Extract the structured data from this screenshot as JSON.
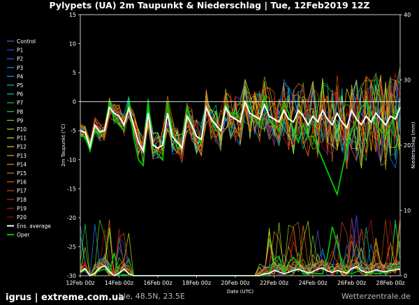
{
  "chart_data": {
    "type": "line",
    "title": "Pylypets  (UA)  2m Taupunkt & Niederschlag | Tue, 12Feb2019 12Z",
    "xlabel": "Date (UTC)",
    "ylabel_left": "2m Taupunkt (°C)",
    "ylabel_right": "Niederschlag (mm)",
    "ylim_left": [
      -30,
      15
    ],
    "ylim_right": [
      0,
      40
    ],
    "xlim_hours": [
      0,
      396
    ],
    "x_ticks": [
      {
        "h": 0,
        "label": "12Feb 00z"
      },
      {
        "h": 48,
        "label": "14Feb 00z"
      },
      {
        "h": 96,
        "label": "16Feb 00z"
      },
      {
        "h": 144,
        "label": "18Feb 00z"
      },
      {
        "h": 192,
        "label": "20Feb 00z"
      },
      {
        "h": 240,
        "label": "22Feb 00z"
      },
      {
        "h": 288,
        "label": "24Feb 00z"
      },
      {
        "h": 336,
        "label": "26Feb 00z"
      },
      {
        "h": 384,
        "label": "28Feb 00z"
      }
    ],
    "y_ticks_left": [
      15,
      10,
      5,
      0,
      -5,
      -10,
      -15,
      -20,
      -25,
      -30
    ],
    "y_ticks_right": [
      0,
      10,
      20,
      30,
      40
    ],
    "legend_placement": "left-outside",
    "series": [
      {
        "name": "Control",
        "color": "#6a5acd"
      },
      {
        "name": "P1",
        "color": "#3a3aff"
      },
      {
        "name": "P2",
        "color": "#2a62ff"
      },
      {
        "name": "P3",
        "color": "#1e8cff"
      },
      {
        "name": "P4",
        "color": "#00aadd"
      },
      {
        "name": "P5",
        "color": "#00c8c8"
      },
      {
        "name": "P6",
        "color": "#00d49a"
      },
      {
        "name": "P7",
        "color": "#00dd60"
      },
      {
        "name": "P8",
        "color": "#22e030"
      },
      {
        "name": "P9",
        "color": "#66e020"
      },
      {
        "name": "P10",
        "color": "#a6e020"
      },
      {
        "name": "P11",
        "color": "#d6e000"
      },
      {
        "name": "P12",
        "color": "#f0d000"
      },
      {
        "name": "P13",
        "color": "#f0a800"
      },
      {
        "name": "P14",
        "color": "#e89020"
      },
      {
        "name": "P15",
        "color": "#e07818"
      },
      {
        "name": "P16",
        "color": "#d86010"
      },
      {
        "name": "P17",
        "color": "#d04a10"
      },
      {
        "name": "P18",
        "color": "#c83010"
      },
      {
        "name": "P19",
        "color": "#c01818"
      },
      {
        "name": "P20",
        "color": "#b00000"
      },
      {
        "name": "Ens. average",
        "color": "#ffffff"
      },
      {
        "name": "Oper",
        "color": "#00cc00"
      }
    ],
    "dew_point": {
      "ens_average": {
        "x": [
          0,
          6,
          12,
          18,
          24,
          30,
          36,
          42,
          48,
          54,
          60,
          66,
          72,
          78,
          84,
          90,
          96,
          102,
          108,
          114,
          120,
          126,
          132,
          138,
          144,
          150,
          156,
          162,
          168,
          174,
          180,
          186,
          192,
          198,
          204,
          210,
          216,
          222,
          228,
          234,
          240,
          246,
          252,
          258,
          264,
          270,
          276,
          282,
          288,
          294,
          300,
          306,
          312,
          318,
          324,
          330,
          336,
          342,
          348,
          354,
          360,
          366,
          372,
          378,
          384,
          390,
          396
        ],
        "y": [
          -5,
          -5.3,
          -7.8,
          -4,
          -5.2,
          -5,
          -1,
          -2,
          -2.5,
          -4,
          -1.2,
          -4,
          -7,
          -8.5,
          -2,
          -7.5,
          -8,
          -7.5,
          -2,
          -6,
          -7,
          -8,
          -2.5,
          -4,
          -6,
          -6.5,
          -1,
          -3,
          -4,
          -5,
          -1,
          -2.5,
          -3,
          -3.5,
          0,
          -2,
          -2.5,
          -3,
          -0.5,
          -2.5,
          -3,
          -3.5,
          -1.5,
          -3,
          -3.5,
          -1.5,
          -2.5,
          -4,
          -2.5,
          -3.5,
          -1.5,
          -3,
          -4,
          -2,
          -3.5,
          -4.5,
          -1.5,
          -3,
          -4,
          -2.5,
          -3.5,
          -2,
          -3,
          -4,
          -2.5,
          -3,
          -1
        ]
      },
      "oper": {
        "x": [
          0,
          6,
          12,
          18,
          24,
          30,
          36,
          42,
          48,
          54,
          60,
          66,
          72,
          78,
          84,
          90,
          96,
          102,
          108,
          114,
          120,
          126,
          132,
          138,
          144,
          150,
          156,
          162,
          168,
          174,
          180,
          186,
          192,
          198,
          204,
          210,
          216,
          222,
          228,
          234,
          240,
          246,
          252,
          258,
          264,
          270,
          276,
          282,
          288,
          294,
          300,
          306,
          312,
          318,
          324,
          330,
          336,
          342,
          348,
          354,
          360,
          366,
          372,
          378,
          384,
          390,
          396
        ],
        "y": [
          -6,
          -6,
          -8.5,
          -5,
          -5.5,
          -5,
          0,
          -3,
          -4,
          -5,
          0,
          -6,
          -10,
          -11,
          0,
          -8,
          -9,
          -10,
          0,
          -5,
          -8,
          -8,
          -1,
          -4,
          -6,
          -7,
          -1,
          -3,
          -5,
          -5,
          -0.5,
          -2,
          -2,
          -3,
          0,
          -1,
          -3,
          -4,
          1,
          -3,
          -4,
          -5,
          0,
          -2,
          -5,
          -7,
          -4,
          -6,
          -6,
          -8,
          -10,
          -12,
          -14,
          -16,
          -12,
          -8,
          -5,
          -3,
          -1,
          0,
          -2,
          -4,
          -5,
          -6,
          -4,
          -2,
          -1
        ]
      }
    },
    "precipitation": {
      "ens_average_mm": {
        "x": [
          0,
          6,
          12,
          18,
          24,
          30,
          36,
          42,
          48,
          54,
          60,
          66,
          72,
          78,
          84,
          90,
          96,
          102,
          108,
          114,
          120,
          126,
          132,
          138,
          144,
          150,
          156,
          162,
          168,
          174,
          180,
          186,
          192,
          198,
          204,
          210,
          216,
          222,
          228,
          234,
          240,
          246,
          252,
          258,
          264,
          270,
          276,
          282,
          288,
          294,
          300,
          306,
          312,
          318,
          324,
          330,
          336,
          342,
          348,
          354,
          360,
          366,
          372,
          378,
          384,
          390,
          396
        ],
        "y": [
          0.6,
          1.1,
          0,
          0.4,
          1.2,
          1.5,
          0.6,
          0,
          0.4,
          1.0,
          0.3,
          0,
          0,
          0,
          0,
          0,
          0,
          0,
          0,
          0,
          0,
          0,
          0,
          0,
          0,
          0,
          0,
          0,
          0,
          0,
          0,
          0,
          0,
          0,
          0,
          0,
          0,
          0,
          0.3,
          0.4,
          0.8,
          0.6,
          0.3,
          0.5,
          0.8,
          1.0,
          0.7,
          0.4,
          0.6,
          1.0,
          1.2,
          0.7,
          0.5,
          0.8,
          0.6,
          0.4,
          1.1,
          1.4,
          0.8,
          0.5,
          0.6,
          0.9,
          0.7,
          0.6,
          0.8,
          0.9,
          1.0
        ]
      },
      "oper_mm": {
        "x": [
          0,
          6,
          12,
          18,
          24,
          30,
          36,
          42,
          48,
          54,
          60,
          66,
          72,
          78,
          84,
          90,
          96,
          102,
          108,
          114,
          120,
          126,
          132,
          138,
          144,
          150,
          156,
          162,
          168,
          174,
          180,
          186,
          192,
          198,
          204,
          210,
          216,
          222,
          228,
          234,
          240,
          246,
          252,
          258,
          264,
          270,
          276,
          282,
          288,
          294,
          300,
          306,
          312,
          318,
          324,
          330,
          336,
          342,
          348,
          354,
          360,
          366,
          372,
          378,
          384,
          390,
          396
        ],
        "y": [
          0.5,
          1.0,
          0,
          0.3,
          0.8,
          1.0,
          0.4,
          3.5,
          0,
          0.2,
          0,
          0,
          0,
          0,
          0,
          0,
          0,
          0,
          0,
          0,
          0,
          0,
          0,
          0,
          0,
          0,
          0,
          0,
          0,
          0,
          0,
          0,
          0,
          0,
          0,
          0,
          0,
          0,
          0,
          0.5,
          2.5,
          3.0,
          0.5,
          2.0,
          2.8,
          1.8,
          0.3,
          0.2,
          0.4,
          0.3,
          0.3,
          3.0,
          7.5,
          5.0,
          2.0,
          0.5,
          0.3,
          0.6,
          0.8,
          0.4,
          0.5,
          0.3,
          0.4,
          0.5,
          1.0,
          1.2,
          1.5
        ]
      }
    }
  },
  "footer": {
    "brand": "igrus | extreme.com.ua",
    "location": "ble, 48.5N, 23.5E",
    "source": "Wetterzentrale.de"
  }
}
